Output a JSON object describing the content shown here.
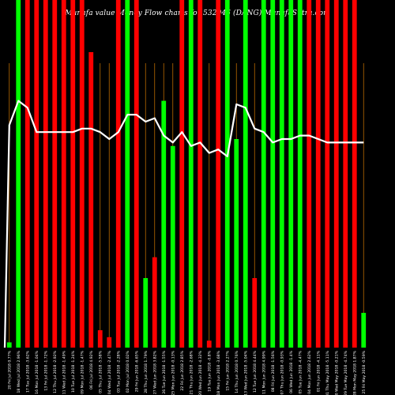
{
  "title": "Munafa value Money Flow charts for 532946 (DANG) MunafaSutra.com",
  "chart_data": {
    "type": "bar",
    "ylim": [
      0,
      100
    ],
    "colors": {
      "up": "#00ff00",
      "down": "#ff0000",
      "line": "#ffffff",
      "grid": "#b86a00",
      "background": "#000000"
    },
    "categories": [
      "20 Fri Jul 2018 0.77%",
      "18 Wed Jul 2018 2.96%",
      "17 Tue Jul 2018 -3.62%",
      "16 Mon Jul 2018 -1.04%",
      "13 Fri Jul 2018 -1.72%",
      "12 Thu Jul 2018 -2.92%",
      "11 Wed Jul 2018 -1.49%",
      "10 Tue Jul 2018 -1.24%",
      "09 Mon Jul 2018 -1.47%",
      "06 Fri Jul 2018 4.92%",
      "05 Thu Jul 2018 -5.58%",
      "04 Wed Jul 2018 -2.47%",
      "03 Tue Jul 2018 -2.28%",
      "02 Mon Jul 2018 0.02%",
      "29 Fri Jun 2018 -6.65%",
      "28 Thu Jun 2018 1.79%",
      "27 Wed Jun 2018 3.82%",
      "26 Tue Jun 2018 -1.55%",
      "25 Mon Jun 2018 -0.13%",
      "22 Fri Jun 2018 2.85%",
      "21 Thu Jun 2018 -2.68%",
      "20 Wed Jun 2018 -4.32%",
      "19 Tue Jun 2018 -0.8%",
      "18 Mon Jun 2018 -3.68%",
      "15 Fri Jun 2018 2.27%",
      "14 Thu Jun 2018 0.76%",
      "13 Wed Jun 2018 -5.04%",
      "12 Tue Jun 2018 4.44%",
      "11 Mon Jun 2018 4.99%",
      "08 Fri Jun 2018 -1.56%",
      "07 Thu Jun 2018 -0.93%",
      "06 Wed Jun 2018 -1.4%",
      "05 Tue Jun 2018 -4.47%",
      "04 Mon Jun 2018 2.62%",
      "01 Fri Jun 2018 -4.11%",
      "31 Thu May 2018 -5.11%",
      "30 Wed May 2018 -0.21%",
      "29 Tue May 2018 -4.74%",
      "28 Mon May 2018 1.87%",
      "25 Fri May 2018 -0.59%"
    ],
    "series": [
      {
        "values": [
          1.5,
          100,
          100,
          100,
          100,
          100,
          100,
          100,
          100,
          85,
          5,
          3,
          100,
          100,
          100,
          20,
          26,
          71,
          58,
          100,
          100,
          100,
          2,
          100,
          100,
          60,
          100,
          20,
          100,
          100,
          100,
          100,
          100,
          100,
          100,
          100,
          100,
          100,
          100,
          10
        ],
        "colors": [
          "up",
          "up",
          "down",
          "down",
          "down",
          "down",
          "down",
          "down",
          "down",
          "down",
          "down",
          "down",
          "down",
          "up",
          "down",
          "up",
          "down",
          "up",
          "up",
          "down",
          "up",
          "down",
          "down",
          "down",
          "up",
          "up",
          "up",
          "down",
          "up",
          "up",
          "up",
          "up",
          "up",
          "down",
          "down",
          "down",
          "down",
          "down",
          "down",
          "up"
        ]
      },
      {
        "values": [
          64,
          71,
          69,
          62,
          62,
          62,
          62,
          62,
          63,
          63,
          62,
          60,
          62,
          67,
          67,
          65,
          66,
          61,
          59,
          62,
          58,
          59,
          56,
          57,
          55,
          70,
          69,
          63,
          62,
          59,
          60,
          60,
          61,
          61,
          60,
          59,
          59,
          59,
          59,
          59
        ]
      }
    ]
  }
}
